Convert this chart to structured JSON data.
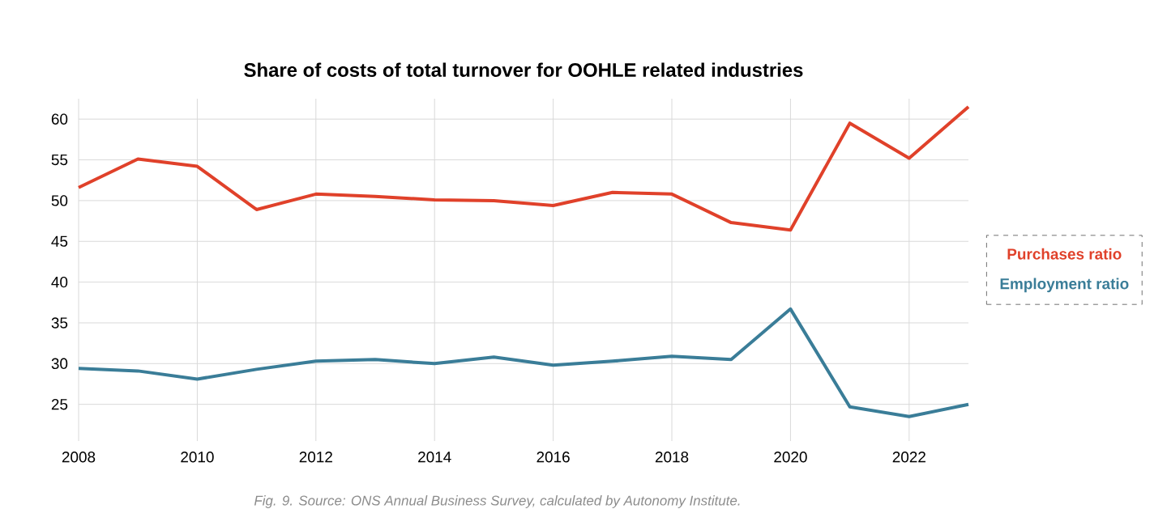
{
  "chart_data": {
    "type": "line",
    "title": "Share of costs of total turnover for OOHLE related industries",
    "x": [
      2008,
      2009,
      2010,
      2011,
      2012,
      2013,
      2014,
      2015,
      2016,
      2017,
      2018,
      2019,
      2020,
      2021,
      2022,
      2023
    ],
    "series": [
      {
        "name": "Purchases ratio",
        "color": "#e0412a",
        "values": [
          51.6,
          55.1,
          54.2,
          48.9,
          50.8,
          50.5,
          50.1,
          50.0,
          49.4,
          51.0,
          50.8,
          47.3,
          46.4,
          59.5,
          55.2,
          61.5
        ]
      },
      {
        "name": "Employment ratio",
        "color": "#3a7d98",
        "values": [
          29.4,
          29.1,
          28.1,
          29.3,
          30.3,
          30.5,
          30.0,
          30.8,
          29.8,
          30.3,
          30.9,
          30.5,
          36.7,
          24.7,
          23.5,
          25.0
        ]
      }
    ],
    "xlim": [
      2008,
      2023
    ],
    "ylim": [
      20.5,
      62.5
    ],
    "xticks": [
      2008,
      2010,
      2012,
      2014,
      2016,
      2018,
      2020,
      2022
    ],
    "yticks": [
      25,
      30,
      35,
      40,
      45,
      50,
      55,
      60
    ],
    "grid": true,
    "legend": "right",
    "marker": "none",
    "annotations": [
      "Fig. 9. Source: ONS Annual Business Survey, calculated by Autonomy Institute."
    ]
  }
}
